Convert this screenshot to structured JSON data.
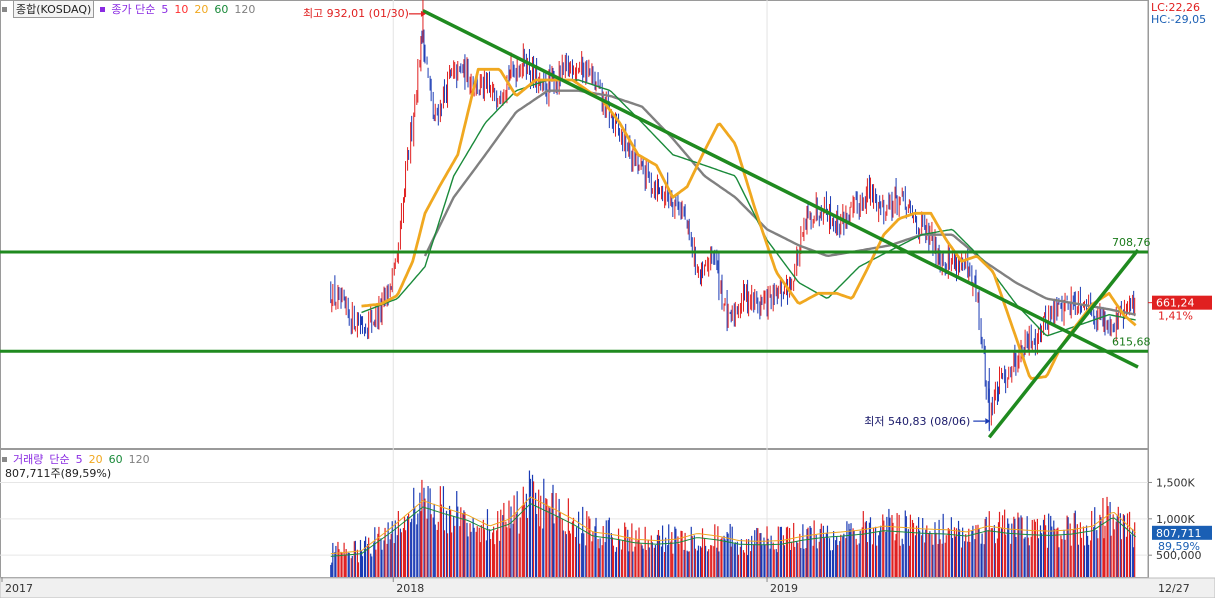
{
  "price_header": {
    "name": "종합(KOSDAQ)",
    "ma_label": "종가 단순",
    "periods": [
      "5",
      "10",
      "20",
      "60",
      "120"
    ]
  },
  "volume_header": {
    "name": "거래량",
    "ma_label": "단순",
    "periods": [
      "5",
      "20",
      "60",
      "120"
    ],
    "current": "807,711주(89,59%)"
  },
  "right_info": {
    "lc": "LC:22,26",
    "hc": "HC:-29,05"
  },
  "annotations": {
    "high": "최고 932,01 (01/30)",
    "low": "최저 540,83 (08/06)",
    "resistance_label": "708,76",
    "support_label": "615,68"
  },
  "current_price": {
    "value": "661,24",
    "change": "1,41%"
  },
  "current_volume": {
    "value": "807,711",
    "change": "89,59%"
  },
  "x_axis": {
    "labels": [
      "2017",
      "2018",
      "2019"
    ],
    "right_label": "12/27"
  },
  "colors": {
    "trendline": "#1f8a1f",
    "ma5": "#8a2be2",
    "ma10": "#ff3030",
    "ma20": "#f0a820",
    "ma60": "#1a8a3a",
    "ma120": "#808080",
    "current_badge": "#e02020",
    "volume_badge": "#1a5fb4"
  },
  "chart_data": [
    {
      "type": "line",
      "title": "",
      "ylabel": "",
      "y_ticks": [
        "550,00",
        "600,00",
        "650,00",
        "700,00",
        "750,00",
        "800,00",
        "850,00",
        "900,00"
      ],
      "ylim": [
        525,
        945
      ],
      "grid": true,
      "x_range": [
        "2017-11",
        "2019-12-27"
      ],
      "series": [
        {
          "name": "종가 단순 20",
          "color": "#f0a820",
          "x": [
            "2017-12-01",
            "2017-12-20",
            "2018-01-05",
            "2018-01-20",
            "2018-02-01",
            "2018-02-15",
            "2018-03-05",
            "2018-03-25",
            "2018-04-15",
            "2018-05-01",
            "2018-05-20",
            "2018-06-10",
            "2018-06-25",
            "2018-07-10",
            "2018-07-25",
            "2018-08-10",
            "2018-08-28",
            "2018-09-15",
            "2018-10-01",
            "2018-10-15",
            "2018-10-30",
            "2018-11-15",
            "2018-12-01",
            "2018-12-20",
            "2019-01-10",
            "2019-02-01",
            "2019-02-20",
            "2019-03-10",
            "2019-03-25",
            "2019-04-10",
            "2019-04-25",
            "2019-05-10",
            "2019-05-25",
            "2019-06-10",
            "2019-06-25",
            "2019-07-10",
            "2019-07-25",
            "2019-08-10",
            "2019-08-28",
            "2019-09-15",
            "2019-10-01",
            "2019-10-15",
            "2019-10-30",
            "2019-11-15",
            "2019-12-01",
            "2019-12-15",
            "2019-12-27"
          ],
          "y": [
            658,
            660,
            668,
            700,
            745,
            770,
            800,
            880,
            880,
            855,
            870,
            870,
            870,
            860,
            850,
            830,
            800,
            790,
            760,
            770,
            800,
            830,
            810,
            750,
            690,
            660,
            670,
            670,
            665,
            695,
            725,
            740,
            745,
            745,
            720,
            700,
            705,
            690,
            640,
            590,
            592,
            620,
            640,
            660,
            670,
            650,
            640
          ]
        },
        {
          "name": "종가 단순 60",
          "color": "#1a8a3a",
          "x": [
            "2017-12-01",
            "2018-01-05",
            "2018-02-01",
            "2018-03-01",
            "2018-04-01",
            "2018-05-01",
            "2018-06-01",
            "2018-07-01",
            "2018-08-01",
            "2018-09-01",
            "2018-10-01",
            "2018-11-01",
            "2018-12-01",
            "2019-01-01",
            "2019-02-01",
            "2019-03-01",
            "2019-04-01",
            "2019-05-01",
            "2019-06-01",
            "2019-07-01",
            "2019-08-01",
            "2019-09-01",
            "2019-10-01",
            "2019-11-01",
            "2019-12-01",
            "2019-12-27"
          ],
          "y": [
            652,
            665,
            695,
            780,
            830,
            860,
            870,
            870,
            860,
            830,
            800,
            790,
            780,
            720,
            680,
            665,
            695,
            710,
            725,
            730,
            700,
            660,
            630,
            640,
            650,
            645
          ]
        },
        {
          "name": "종가 단순 120",
          "color": "#808080",
          "x": [
            "2018-02-01",
            "2018-03-01",
            "2018-04-01",
            "2018-05-01",
            "2018-06-01",
            "2018-07-01",
            "2018-08-01",
            "2018-09-01",
            "2018-10-01",
            "2018-11-01",
            "2018-12-01",
            "2019-01-01",
            "2019-02-01",
            "2019-03-01",
            "2019-04-01",
            "2019-05-01",
            "2019-06-01",
            "2019-07-01",
            "2019-08-01",
            "2019-09-01",
            "2019-10-01",
            "2019-11-01",
            "2019-12-01",
            "2019-12-27"
          ],
          "y": [
            705,
            760,
            800,
            840,
            860,
            860,
            855,
            845,
            815,
            780,
            760,
            730,
            715,
            705,
            710,
            715,
            725,
            725,
            700,
            680,
            665,
            660,
            655,
            650
          ]
        },
        {
          "name": "종가",
          "color": "#1a3a9a",
          "x": [
            "2017-11-01",
            "2017-11-20",
            "2017-12-05",
            "2017-12-20",
            "2018-01-05",
            "2018-01-15",
            "2018-01-30",
            "2018-02-10",
            "2018-02-25",
            "2018-03-10",
            "2018-03-25",
            "2018-04-10",
            "2018-04-25",
            "2018-05-10",
            "2018-05-25",
            "2018-06-10",
            "2018-06-25",
            "2018-07-10",
            "2018-07-25",
            "2018-08-10",
            "2018-08-28",
            "2018-09-15",
            "2018-10-01",
            "2018-10-10",
            "2018-10-29",
            "2018-11-10",
            "2018-11-25",
            "2018-12-10",
            "2018-12-25",
            "2019-01-10",
            "2019-01-25",
            "2019-02-10",
            "2019-02-25",
            "2019-03-10",
            "2019-03-25",
            "2019-04-10",
            "2019-04-25",
            "2019-05-10",
            "2019-05-25",
            "2019-06-10",
            "2019-06-25",
            "2019-07-10",
            "2019-07-25",
            "2019-08-06",
            "2019-08-20",
            "2019-09-05",
            "2019-09-20",
            "2019-10-05",
            "2019-10-20",
            "2019-11-05",
            "2019-11-20",
            "2019-12-05",
            "2019-12-15",
            "2019-12-27"
          ],
          "y": [
            670,
            648,
            640,
            652,
            695,
            790,
            915,
            830,
            870,
            880,
            865,
            855,
            875,
            890,
            860,
            870,
            885,
            880,
            850,
            820,
            790,
            770,
            760,
            750,
            680,
            710,
            640,
            670,
            660,
            665,
            680,
            740,
            755,
            735,
            745,
            765,
            750,
            760,
            740,
            720,
            700,
            700,
            670,
            560,
            590,
            615,
            630,
            650,
            660,
            665,
            650,
            640,
            650,
            661.24
          ]
        }
      ],
      "trendlines": [
        {
          "name": "하락 추세선",
          "from": [
            "2018-01-30",
            935
          ],
          "to": [
            "2019-12-27",
            602
          ]
        },
        {
          "name": "상승 추세선",
          "from": [
            "2019-08-06",
            535
          ],
          "to": [
            "2019-12-27",
            708
          ]
        },
        {
          "name": "저항선",
          "value": 708.76
        },
        {
          "name": "지지선",
          "value": 615.68
        }
      ],
      "markers": [
        {
          "label": "최고",
          "x": "2018-01-30",
          "y": 932.01
        },
        {
          "label": "최저",
          "x": "2019-08-06",
          "y": 540.83
        }
      ]
    },
    {
      "type": "bar",
      "title": "",
      "ylabel": "",
      "y_ticks": [
        "500,000",
        "1,000K",
        "1,500K"
      ],
      "ylim": [
        200000,
        1850000
      ],
      "grid": true,
      "series": [
        {
          "name": "거래량",
          "x": [
            "2017-11-01",
            "2017-12-01",
            "2018-01-01",
            "2018-01-30",
            "2018-02-20",
            "2018-03-15",
            "2018-04-05",
            "2018-04-25",
            "2018-05-15",
            "2018-06-05",
            "2018-06-25",
            "2018-07-15",
            "2018-08-05",
            "2018-08-25",
            "2018-09-15",
            "2018-10-05",
            "2018-10-25",
            "2018-11-15",
            "2018-12-05",
            "2018-12-25",
            "2019-01-15",
            "2019-02-05",
            "2019-02-25",
            "2019-03-15",
            "2019-04-05",
            "2019-04-25",
            "2019-05-15",
            "2019-06-05",
            "2019-06-25",
            "2019-07-15",
            "2019-08-05",
            "2019-08-25",
            "2019-09-15",
            "2019-10-05",
            "2019-10-25",
            "2019-11-15",
            "2019-12-05",
            "2019-12-27"
          ],
          "y": [
            520000,
            560000,
            900000,
            1250000,
            1150000,
            1050000,
            900000,
            1000000,
            1300000,
            1150000,
            1000000,
            820000,
            780000,
            720000,
            700000,
            720000,
            800000,
            760000,
            700000,
            690000,
            700000,
            760000,
            800000,
            820000,
            850000,
            900000,
            880000,
            860000,
            850000,
            820000,
            900000,
            860000,
            840000,
            830000,
            850000,
            900000,
            1100000,
            807711
          ]
        }
      ]
    }
  ]
}
